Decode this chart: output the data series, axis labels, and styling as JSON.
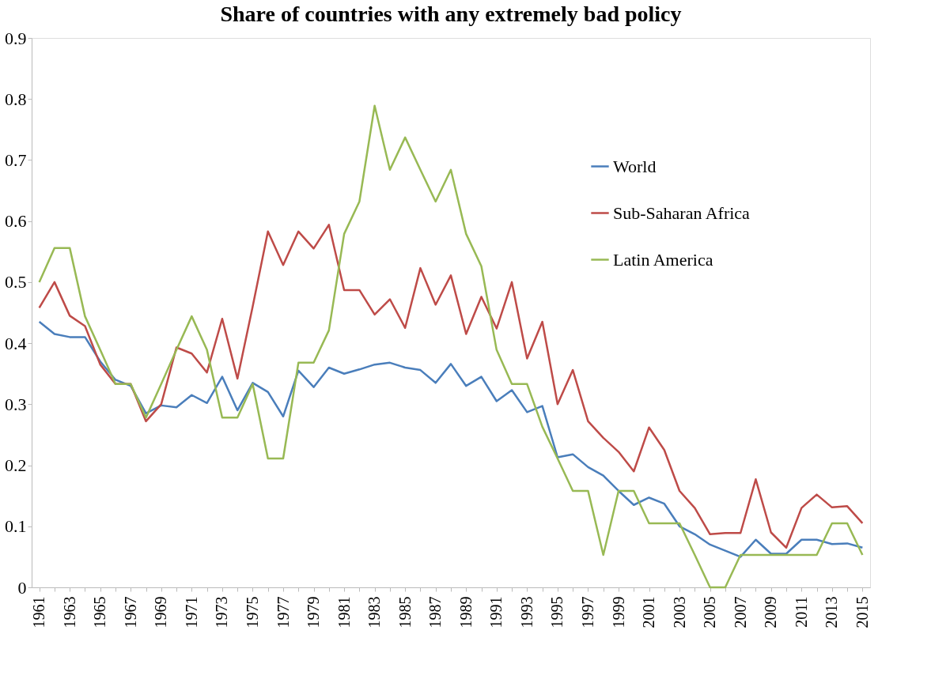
{
  "chart_data": {
    "type": "line",
    "title": "Share of countries with any extremely bad policy",
    "categories": [
      "1961",
      null,
      "1963",
      null,
      "1965",
      null,
      "1967",
      null,
      "1969",
      null,
      "1971",
      null,
      "1973",
      null,
      "1975",
      null,
      "1977",
      null,
      "1979",
      null,
      "1981",
      null,
      "1983",
      null,
      "1985",
      null,
      "1987",
      null,
      "1989",
      null,
      "1991",
      null,
      "1993",
      null,
      "1995",
      null,
      "1997",
      null,
      "1999",
      null,
      "2001",
      null,
      "2003",
      null,
      "2005",
      null,
      "2007",
      null,
      "2009",
      null,
      "2011",
      null,
      "2013",
      null,
      "2015"
    ],
    "series": [
      {
        "name": "World",
        "color": "#4a7ebb",
        "values": [
          0.435,
          0.415,
          0.41,
          0.41,
          0.37,
          0.34,
          0.33,
          0.285,
          0.298,
          0.295,
          0.315,
          0.302,
          0.345,
          0.29,
          0.335,
          0.32,
          0.28,
          0.355,
          0.328,
          0.36,
          0.35,
          0.357,
          0.365,
          0.368,
          0.36,
          0.356,
          0.335,
          0.366,
          0.33,
          0.345,
          0.305,
          0.323,
          0.287,
          0.297,
          0.213,
          0.218,
          0.197,
          0.183,
          0.158,
          0.135,
          0.147,
          0.137,
          0.1,
          0.087,
          0.07,
          0.06,
          0.05,
          0.078,
          0.055,
          0.055,
          0.078,
          0.078,
          0.071,
          0.072,
          0.065
        ]
      },
      {
        "name": "Sub-Saharan Africa",
        "color": "#be4b48",
        "values": [
          0.458,
          0.5,
          0.445,
          0.428,
          0.365,
          0.333,
          0.333,
          0.272,
          0.3,
          0.393,
          0.383,
          0.352,
          0.44,
          0.342,
          0.46,
          0.583,
          0.528,
          0.583,
          0.555,
          0.594,
          0.487,
          0.487,
          0.447,
          0.472,
          0.425,
          0.523,
          0.463,
          0.511,
          0.415,
          0.476,
          0.424,
          0.5,
          0.375,
          0.435,
          0.3,
          0.356,
          0.272,
          0.245,
          0.222,
          0.19,
          0.262,
          0.225,
          0.158,
          0.13,
          0.087,
          0.089,
          0.089,
          0.177,
          0.09,
          0.065,
          0.13,
          0.152,
          0.131,
          0.133,
          0.105
        ]
      },
      {
        "name": "Latin America",
        "color": "#98b954",
        "values": [
          0.5,
          0.556,
          0.556,
          0.444,
          0.389,
          0.333,
          0.333,
          0.278,
          0.333,
          0.389,
          0.444,
          0.389,
          0.278,
          0.278,
          0.333,
          0.211,
          0.211,
          0.368,
          0.368,
          0.421,
          0.579,
          0.632,
          0.789,
          0.684,
          0.737,
          0.684,
          0.632,
          0.684,
          0.579,
          0.526,
          0.389,
          0.333,
          0.333,
          0.263,
          0.211,
          0.158,
          0.158,
          0.053,
          0.158,
          0.158,
          0.105,
          0.105,
          0.105,
          0.053,
          0,
          0,
          0.053,
          0.053,
          0.053,
          0.053,
          0.053,
          0.053,
          0.105,
          0.105,
          0.053
        ]
      }
    ],
    "ylim": [
      0,
      0.9
    ],
    "yticks": [
      0,
      0.1,
      0.2,
      0.3,
      0.4,
      0.5,
      0.6,
      0.7,
      0.8,
      0.9
    ],
    "legend": "top right",
    "grid": false,
    "marker": "none",
    "line_style": "solid"
  }
}
